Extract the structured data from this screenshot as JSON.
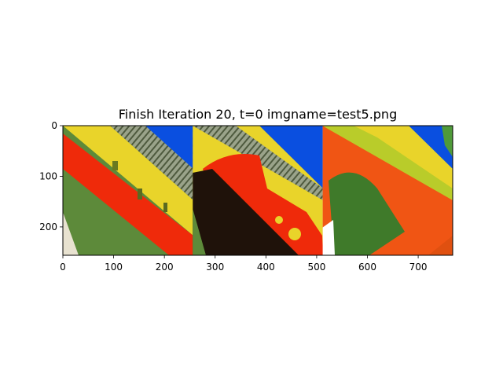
{
  "chart_data": {
    "type": "image",
    "title": "Finish Iteration 20, t=0 imgname=test5.png",
    "xlim": [
      0,
      768
    ],
    "ylim": [
      256,
      0
    ],
    "xticks": [
      0,
      100,
      200,
      300,
      400,
      500,
      600,
      700
    ],
    "yticks": [
      0,
      100,
      200
    ],
    "panels": [
      {
        "x_start": 0,
        "x_end": 256
      },
      {
        "x_start": 256,
        "x_end": 512
      },
      {
        "x_start": 512,
        "x_end": 768
      }
    ],
    "colors": {
      "red": "#ef2a0a",
      "yellow": "#e9d42a",
      "blue": "#0a4fe0",
      "green": "#3f7a2a",
      "dark": "#1f120a",
      "orange": "#f05514",
      "lime": "#b9cc2a"
    }
  }
}
